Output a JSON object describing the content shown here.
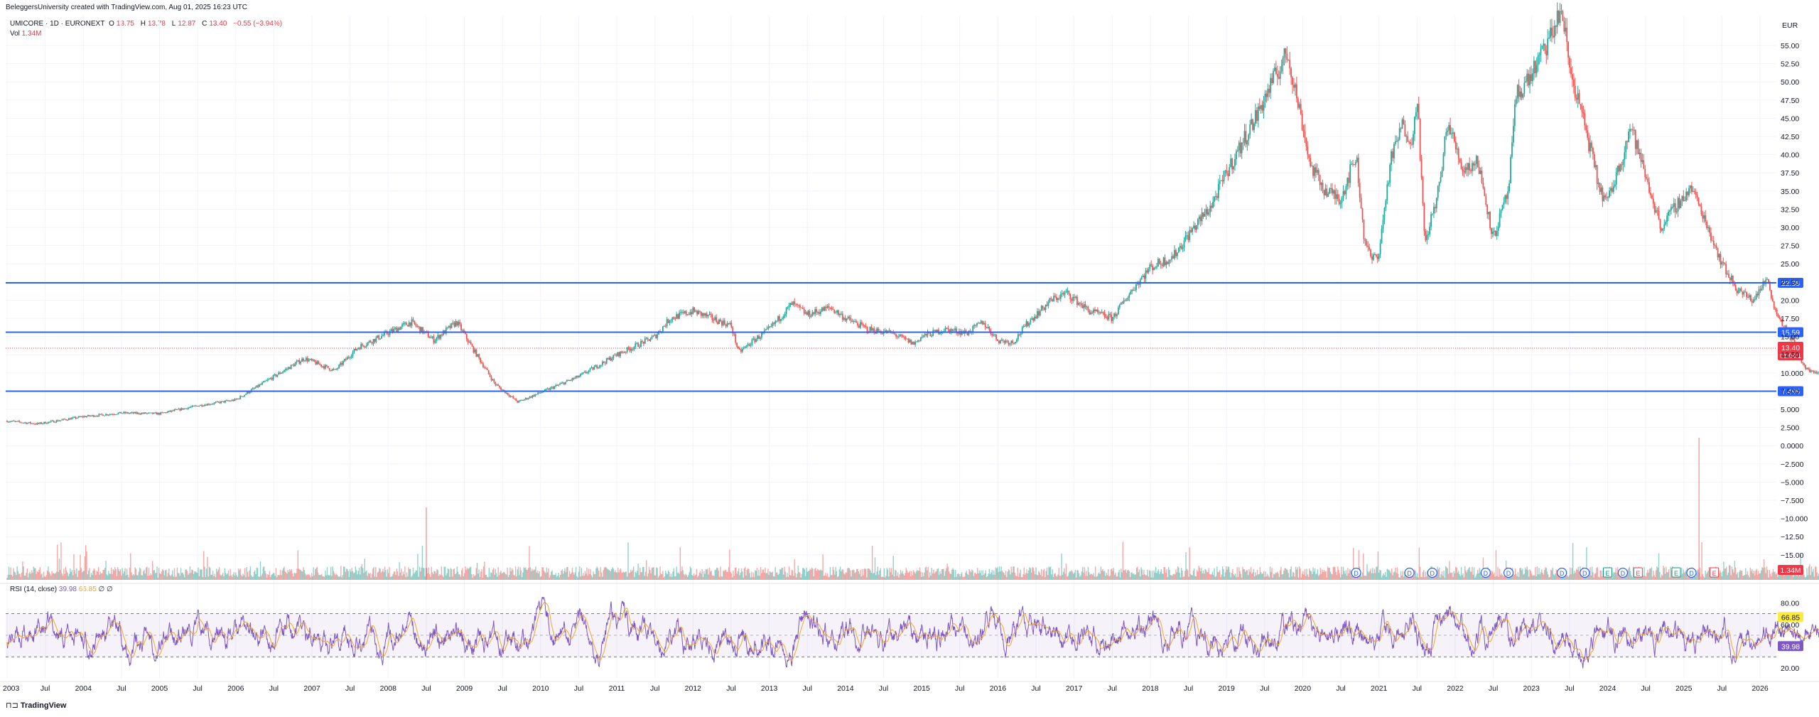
{
  "header": {
    "credit": "BeleggersUniversity created with TradingView.com, Aug 01, 2025 16:23 UTC",
    "symbol": "UMICORE · 1D · EURONEXT",
    "open_label": "O",
    "open": "13.75",
    "high_label": "H",
    "high": "13.78",
    "low_label": "L",
    "low": "12.87",
    "close_label": "C",
    "close": "13.40",
    "change": "−0.55 (−3.94%)",
    "vol_label": "Vol",
    "vol_value": "1.34M",
    "rsi_title": "RSI (14, close)",
    "rsi_value": "39.98",
    "rsi_ma": "66.85",
    "rsi_extra": "∅ ∅"
  },
  "brand": "TradingView",
  "currency": "EUR",
  "colors": {
    "up": "#26a69a",
    "down": "#ef5350",
    "level_line": "#2962ff",
    "rsi": "#7e57c2",
    "rsi_ma": "#f5a623",
    "price_tag": "#f23645"
  },
  "chart_data": {
    "type": "candlestick",
    "symbol": "UMICORE",
    "interval": "1D",
    "x_ticks": [
      "2003",
      "Jul",
      "2004",
      "Jul",
      "2005",
      "Jul",
      "2006",
      "Jul",
      "2007",
      "Jul",
      "2008",
      "Jul",
      "2009",
      "Jul",
      "2010",
      "Jul",
      "2011",
      "Jul",
      "2012",
      "Jul",
      "2013",
      "Jul",
      "2014",
      "Jul",
      "2015",
      "Jul",
      "2016",
      "Jul",
      "2017",
      "Jul",
      "2018",
      "Jul",
      "2019",
      "Jul",
      "2020",
      "Jul",
      "2021",
      "Jul",
      "2022",
      "Jul",
      "2023",
      "Jul",
      "2024",
      "Jul",
      "2025",
      "Jul",
      "2026"
    ],
    "y_ticks": [
      "55.00",
      "52.50",
      "50.00",
      "47.50",
      "45.00",
      "42.50",
      "40.00",
      "37.50",
      "35.00",
      "32.50",
      "30.00",
      "27.50",
      "25.00",
      "22.50",
      "20.00",
      "17.50",
      "15.00",
      "12.50",
      "10.000",
      "7.500",
      "5.000",
      "2.500",
      "0.0000",
      "−2.500",
      "−5.000",
      "−7.500",
      "−10.000",
      "−12.50",
      "−15.00"
    ],
    "ylim": [
      -15,
      55
    ],
    "price_path": [
      [
        2003.0,
        3.4
      ],
      [
        2003.4,
        3.0
      ],
      [
        2004.0,
        4.0
      ],
      [
        2004.5,
        4.5
      ],
      [
        2005.0,
        4.4
      ],
      [
        2005.5,
        5.5
      ],
      [
        2006.0,
        6.3
      ],
      [
        2006.5,
        9.5
      ],
      [
        2006.9,
        12.0
      ],
      [
        2007.3,
        10.3
      ],
      [
        2007.6,
        13.5
      ],
      [
        2008.0,
        15.5
      ],
      [
        2008.3,
        17.0
      ],
      [
        2008.6,
        14.5
      ],
      [
        2008.9,
        17.0
      ],
      [
        2009.1,
        13.5
      ],
      [
        2009.4,
        8.5
      ],
      [
        2009.7,
        6.0
      ],
      [
        2010.0,
        7.3
      ],
      [
        2010.5,
        9.5
      ],
      [
        2011.0,
        12.5
      ],
      [
        2011.5,
        15.0
      ],
      [
        2011.7,
        17.5
      ],
      [
        2012.0,
        18.5
      ],
      [
        2012.5,
        16.5
      ],
      [
        2012.6,
        12.8
      ],
      [
        2012.8,
        14.5
      ],
      [
        2013.0,
        16.0
      ],
      [
        2013.3,
        19.5
      ],
      [
        2013.5,
        18.0
      ],
      [
        2013.8,
        19.0
      ],
      [
        2014.0,
        17.5
      ],
      [
        2014.3,
        16.0
      ],
      [
        2014.6,
        15.5
      ],
      [
        2014.9,
        14.0
      ],
      [
        2015.0,
        15.0
      ],
      [
        2015.3,
        16.0
      ],
      [
        2015.6,
        15.5
      ],
      [
        2015.8,
        17.0
      ],
      [
        2016.0,
        14.5
      ],
      [
        2016.2,
        14.2
      ],
      [
        2016.4,
        17.0
      ],
      [
        2016.7,
        20.0
      ],
      [
        2016.9,
        21.0
      ],
      [
        2017.2,
        18.5
      ],
      [
        2017.5,
        17.5
      ],
      [
        2017.8,
        22.0
      ],
      [
        2018.0,
        24.5
      ],
      [
        2018.3,
        26.0
      ],
      [
        2018.5,
        29.0
      ],
      [
        2018.8,
        33.0
      ],
      [
        2019.0,
        37.5
      ],
      [
        2019.2,
        41.5
      ],
      [
        2019.4,
        45.5
      ],
      [
        2019.6,
        50.0
      ],
      [
        2019.8,
        54.0
      ],
      [
        2020.0,
        44.0
      ],
      [
        2020.1,
        38.5
      ],
      [
        2020.3,
        35.0
      ],
      [
        2020.5,
        34.0
      ],
      [
        2020.7,
        40.0
      ],
      [
        2020.8,
        29.0
      ],
      [
        2020.9,
        25.5
      ],
      [
        2021.0,
        26.5
      ],
      [
        2021.15,
        39.0
      ],
      [
        2021.3,
        44.0
      ],
      [
        2021.45,
        42.0
      ],
      [
        2021.5,
        49.0
      ],
      [
        2021.6,
        27.5
      ],
      [
        2021.8,
        36.0
      ],
      [
        2021.9,
        44.5
      ],
      [
        2022.1,
        38.0
      ],
      [
        2022.3,
        39.0
      ],
      [
        2022.5,
        28.5
      ],
      [
        2022.7,
        35.0
      ],
      [
        2022.8,
        48.0
      ],
      [
        2023.0,
        51.0
      ],
      [
        2023.2,
        55.0
      ],
      [
        2023.4,
        60.0
      ],
      [
        2023.5,
        52.0
      ],
      [
        2023.7,
        44.0
      ],
      [
        2023.9,
        35.0
      ],
      [
        2024.0,
        33.5
      ],
      [
        2024.2,
        40.0
      ],
      [
        2024.3,
        44.0
      ],
      [
        2024.5,
        37.0
      ],
      [
        2024.7,
        30.0
      ],
      [
        2024.9,
        33.0
      ],
      [
        2025.1,
        35.5
      ],
      [
        2025.3,
        30.5
      ],
      [
        2025.5,
        25.0
      ],
      [
        2025.7,
        21.5
      ],
      [
        2025.9,
        20.0
      ],
      [
        2026.1,
        23.0
      ],
      [
        2026.2,
        18.5
      ],
      [
        2026.4,
        15.0
      ],
      [
        2026.6,
        10.5
      ],
      [
        2026.9,
        9.5
      ],
      [
        2027.2,
        8.0
      ],
      [
        2027.4,
        10.5
      ],
      [
        2027.6,
        15.0
      ],
      [
        2027.7,
        13.4
      ]
    ],
    "horizontal_levels": [
      "22.38",
      "15.59",
      "7.495"
    ],
    "last_price": "13.40",
    "countdown": "01:04:1",
    "volume_last": "1.34M",
    "rsi": {
      "length": 14,
      "source": "close",
      "value": "39.98",
      "ma": "66.85",
      "ylim": [
        10,
        90
      ],
      "upper_band": 70,
      "lower_band": 30,
      "y_ticks": [
        "80.00",
        "60.00",
        "20.00"
      ]
    },
    "event_markers": [
      "D",
      "D",
      "D",
      "D",
      "D",
      "D",
      "D",
      "E",
      "D",
      "E",
      "E",
      "D",
      "E"
    ]
  }
}
